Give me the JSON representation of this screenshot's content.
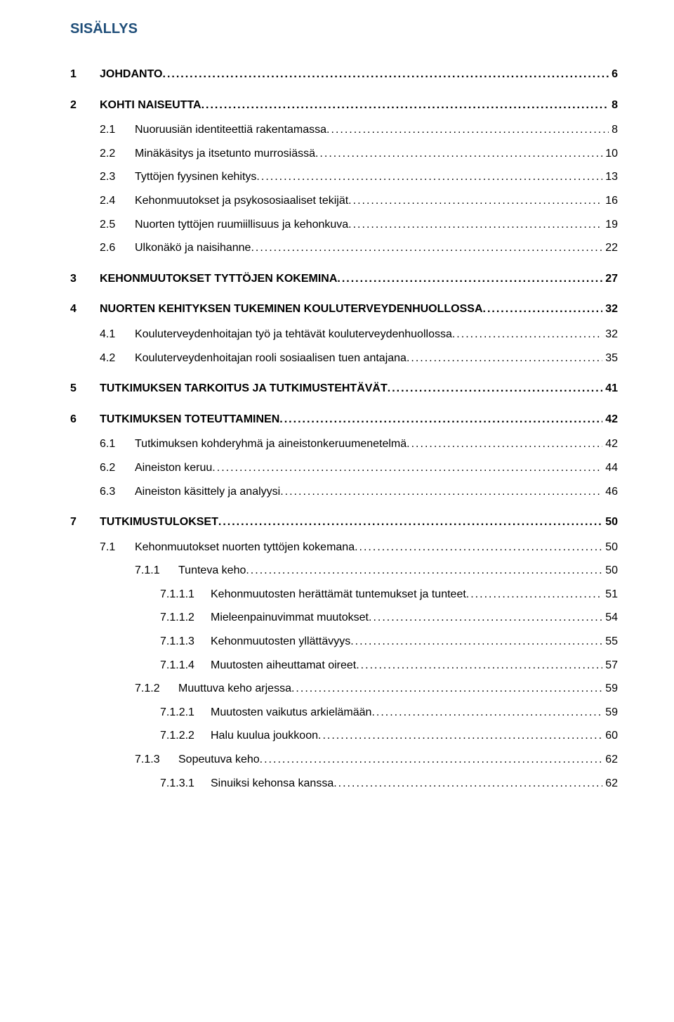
{
  "title": "SISÄLLYS",
  "colors": {
    "title": "#1f4e79",
    "text": "#000000",
    "background": "#ffffff"
  },
  "typography": {
    "family": "Arial",
    "title_size_pt": 15,
    "body_size_pt": 12,
    "l1_bold": true
  },
  "entries": [
    {
      "level": 1,
      "num": "1",
      "label": "JOHDANTO",
      "page": "6"
    },
    {
      "level": 1,
      "num": "2",
      "label": "KOHTI NAISEUTTA",
      "page": "8"
    },
    {
      "level": 2,
      "num": "2.1",
      "label": "Nuoruusiän identiteettiä rakentamassa",
      "page": "8"
    },
    {
      "level": 2,
      "num": "2.2",
      "label": "Minäkäsitys ja itsetunto murrosiässä",
      "page": "10"
    },
    {
      "level": 2,
      "num": "2.3",
      "label": "Tyttöjen fyysinen kehitys",
      "page": "13"
    },
    {
      "level": 2,
      "num": "2.4",
      "label": "Kehonmuutokset ja psykososiaaliset tekijät",
      "page": "16"
    },
    {
      "level": 2,
      "num": "2.5",
      "label": "Nuorten tyttöjen ruumiillisuus ja kehonkuva",
      "page": "19"
    },
    {
      "level": 2,
      "num": "2.6",
      "label": "Ulkonäkö ja naisihanne",
      "page": "22"
    },
    {
      "level": 1,
      "num": "3",
      "label": "KEHONMUUTOKSET TYTTÖJEN KOKEMINA",
      "page": "27"
    },
    {
      "level": 1,
      "num": "4",
      "label": "NUORTEN KEHITYKSEN TUKEMINEN KOULUTERVEYDENHUOLLOSSA",
      "page": "32"
    },
    {
      "level": 2,
      "num": "4.1",
      "label": "Kouluterveydenhoitajan työ ja tehtävät kouluterveydenhuollossa",
      "page": "32"
    },
    {
      "level": 2,
      "num": "4.2",
      "label": "Kouluterveydenhoitajan rooli sosiaalisen tuen antajana",
      "page": "35"
    },
    {
      "level": 1,
      "num": "5",
      "label": "TUTKIMUKSEN TARKOITUS JA TUTKIMUSTEHTÄVÄT",
      "page": "41"
    },
    {
      "level": 1,
      "num": "6",
      "label": "TUTKIMUKSEN TOTEUTTAMINEN",
      "page": "42"
    },
    {
      "level": 2,
      "num": "6.1",
      "label": "Tutkimuksen kohderyhmä ja aineistonkeruumenetelmä",
      "page": "42"
    },
    {
      "level": 2,
      "num": "6.2",
      "label": "Aineiston keruu",
      "page": "44"
    },
    {
      "level": 2,
      "num": "6.3",
      "label": "Aineiston käsittely ja analyysi",
      "page": "46"
    },
    {
      "level": 1,
      "num": "7",
      "label": "TUTKIMUSTULOKSET",
      "page": "50"
    },
    {
      "level": 2,
      "num": "7.1",
      "label": "Kehonmuutokset nuorten tyttöjen kokemana",
      "page": "50"
    },
    {
      "level": 3,
      "num": "7.1.1",
      "label": "Tunteva keho",
      "page": "50"
    },
    {
      "level": 4,
      "num": "7.1.1.1",
      "label": "Kehonmuutosten herättämät tuntemukset ja tunteet",
      "page": "51"
    },
    {
      "level": 4,
      "num": "7.1.1.2",
      "label": "Mieleenpainuvimmat muutokset",
      "page": "54"
    },
    {
      "level": 4,
      "num": "7.1.1.3",
      "label": "Kehonmuutosten yllättävyys",
      "page": "55"
    },
    {
      "level": 4,
      "num": "7.1.1.4",
      "label": "Muutosten aiheuttamat oireet",
      "page": "57"
    },
    {
      "level": 3,
      "num": "7.1.2",
      "label": "Muuttuva keho arjessa",
      "page": "59"
    },
    {
      "level": 4,
      "num": "7.1.2.1",
      "label": "Muutosten vaikutus arkielämään",
      "page": "59"
    },
    {
      "level": 4,
      "num": "7.1.2.2",
      "label": "Halu kuulua joukkoon",
      "page": "60"
    },
    {
      "level": 3,
      "num": "7.1.3",
      "label": "Sopeutuva keho",
      "page": "62"
    },
    {
      "level": 4,
      "num": "7.1.3.1",
      "label": "Sinuiksi kehonsa kanssa",
      "page": "62"
    }
  ]
}
